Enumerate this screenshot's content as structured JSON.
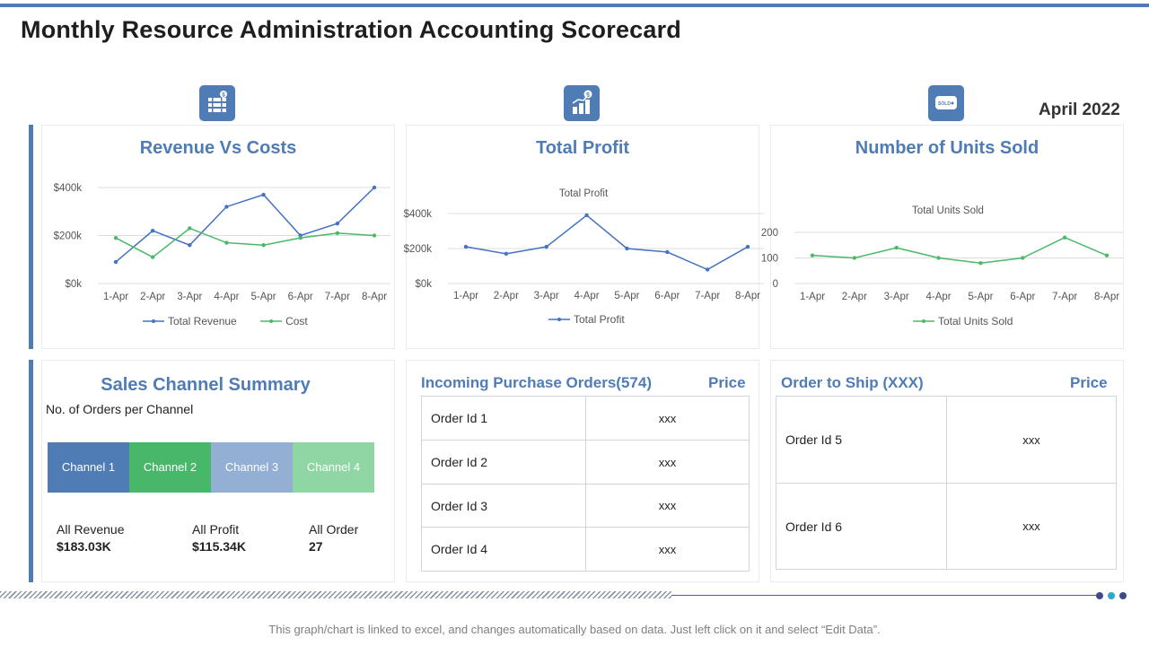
{
  "header": {
    "title": "Monthly Resource Administration Accounting Scorecard",
    "date": "April 2022"
  },
  "icons": {
    "revenue": "money-stack-icon",
    "profit": "growth-coins-icon",
    "units": "sold-tag-icon",
    "sold_text": "SOLD"
  },
  "colors": {
    "accent": "#4f7cb5",
    "blue_series": "#4472c4",
    "green_series": "#4cb86a"
  },
  "revenue_card": {
    "title": "Revenue Vs Costs"
  },
  "profit_card": {
    "title": "Total Profit"
  },
  "units_card": {
    "title": "Number of Units Sold"
  },
  "chart_data": [
    {
      "type": "line",
      "title": "Revenue Vs Costs",
      "x": [
        "1-Apr",
        "2-Apr",
        "3-Apr",
        "4-Apr",
        "5-Apr",
        "6-Apr",
        "7-Apr",
        "8-Apr"
      ],
      "series": [
        {
          "name": "Total Revenue",
          "values": [
            90,
            220,
            160,
            320,
            370,
            200,
            250,
            400
          ]
        },
        {
          "name": "Cost",
          "values": [
            190,
            110,
            230,
            170,
            160,
            190,
            210,
            200
          ]
        }
      ],
      "yticks": [
        "$0k",
        "$200k",
        "$400k"
      ],
      "ylim": [
        0,
        400
      ],
      "ylabel": "",
      "xlabel": "",
      "grid": true,
      "legend": "bottom"
    },
    {
      "type": "line",
      "title": "Total Profit",
      "x": [
        "1-Apr",
        "2-Apr",
        "3-Apr",
        "4-Apr",
        "5-Apr",
        "6-Apr",
        "7-Apr",
        "8-Apr"
      ],
      "series": [
        {
          "name": "Total Profit",
          "values": [
            210,
            170,
            210,
            390,
            200,
            180,
            80,
            210
          ]
        }
      ],
      "yticks": [
        "$0k",
        "$200k",
        "$400k"
      ],
      "ylim": [
        0,
        400
      ],
      "ylabel": "",
      "xlabel": "",
      "grid": true,
      "legend": "bottom"
    },
    {
      "type": "line",
      "title": "Total Units Sold",
      "x": [
        "1-Apr",
        "2-Apr",
        "3-Apr",
        "4-Apr",
        "5-Apr",
        "6-Apr",
        "7-Apr",
        "8-Apr"
      ],
      "series": [
        {
          "name": "Total Units Sold",
          "values": [
            110,
            100,
            140,
            100,
            80,
            100,
            180,
            110
          ]
        }
      ],
      "yticks": [
        "0",
        "100",
        "200"
      ],
      "ylim": [
        0,
        200
      ],
      "ylabel": "",
      "xlabel": "",
      "grid": true,
      "legend": "bottom"
    }
  ],
  "sales": {
    "title": "Sales Channel Summary",
    "subtitle": "No. of Orders per Channel",
    "channels": [
      "Channel 1",
      "Channel 2",
      "Channel 3",
      "Channel 4"
    ],
    "channel_colors": [
      "#4f7cb5",
      "#48b76a",
      "#93afd4",
      "#8ed6a3"
    ],
    "stats": [
      {
        "label": "All Revenue",
        "value": "$183.03K"
      },
      {
        "label": "All Profit",
        "value": "$115.34K"
      },
      {
        "label": "All Order",
        "value": "27"
      }
    ]
  },
  "incoming": {
    "title": "Incoming Purchase Orders(574)",
    "price_label": "Price",
    "rows": [
      {
        "id": "Order Id 1",
        "price": "xxx"
      },
      {
        "id": "Order Id 2",
        "price": "xxx"
      },
      {
        "id": "Order Id 3",
        "price": "xxx"
      },
      {
        "id": "Order Id 4",
        "price": "xxx"
      }
    ]
  },
  "ship": {
    "title": "Order to Ship (XXX)",
    "price_label": "Price",
    "rows": [
      {
        "id": "Order Id 5",
        "price": "xxx"
      },
      {
        "id": "Order Id 6",
        "price": "xxx"
      }
    ]
  },
  "footer": {
    "note": "This graph/chart is linked to excel, and changes automatically based on data. Just left click on it and select “Edit Data”."
  }
}
